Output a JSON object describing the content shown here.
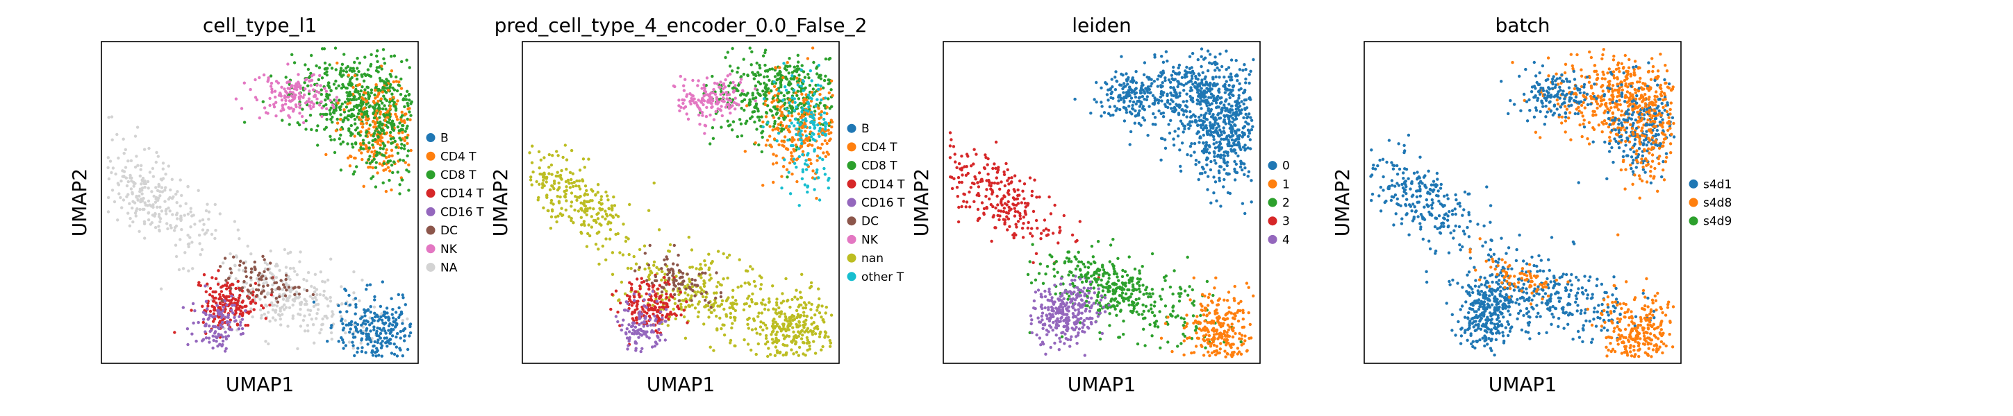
{
  "chart_data": [
    {
      "type": "scatter",
      "title": "cell_type_l1",
      "xlabel": "UMAP1",
      "ylabel": "UMAP2",
      "legend_placement": "right",
      "legend": [
        {
          "label": "B",
          "color": "#1f77b4"
        },
        {
          "label": "CD4 T",
          "color": "#ff7f0e"
        },
        {
          "label": "CD8 T",
          "color": "#2ca02c"
        },
        {
          "label": "CD14 T",
          "color": "#d62728"
        },
        {
          "label": "CD16 T",
          "color": "#9467bd"
        },
        {
          "label": "DC",
          "color": "#8c564b"
        },
        {
          "label": "NK",
          "color": "#e377c2"
        },
        {
          "label": "NA",
          "color": "#d3d3d3"
        }
      ]
    },
    {
      "type": "scatter",
      "title": "pred_cell_type_4_encoder_0.0_False_2",
      "xlabel": "UMAP1",
      "ylabel": "UMAP2",
      "legend_placement": "right",
      "legend": [
        {
          "label": "B",
          "color": "#1f77b4"
        },
        {
          "label": "CD4 T",
          "color": "#ff7f0e"
        },
        {
          "label": "CD8 T",
          "color": "#2ca02c"
        },
        {
          "label": "CD14 T",
          "color": "#d62728"
        },
        {
          "label": "CD16 T",
          "color": "#9467bd"
        },
        {
          "label": "DC",
          "color": "#8c564b"
        },
        {
          "label": "NK",
          "color": "#e377c2"
        },
        {
          "label": "nan",
          "color": "#bcbd22"
        },
        {
          "label": "other T",
          "color": "#17becf"
        }
      ]
    },
    {
      "type": "scatter",
      "title": "leiden",
      "xlabel": "UMAP1",
      "ylabel": "UMAP2",
      "legend_placement": "right",
      "legend": [
        {
          "label": "0",
          "color": "#1f77b4"
        },
        {
          "label": "1",
          "color": "#ff7f0e"
        },
        {
          "label": "2",
          "color": "#2ca02c"
        },
        {
          "label": "3",
          "color": "#d62728"
        },
        {
          "label": "4",
          "color": "#9467bd"
        }
      ]
    },
    {
      "type": "scatter",
      "title": "batch",
      "xlabel": "UMAP1",
      "ylabel": "UMAP2",
      "legend_placement": "right",
      "legend": [
        {
          "label": "s4d1",
          "color": "#1f77b4"
        },
        {
          "label": "s4d8",
          "color": "#ff7f0e"
        },
        {
          "label": "s4d9",
          "color": "#2ca02c"
        }
      ]
    }
  ]
}
